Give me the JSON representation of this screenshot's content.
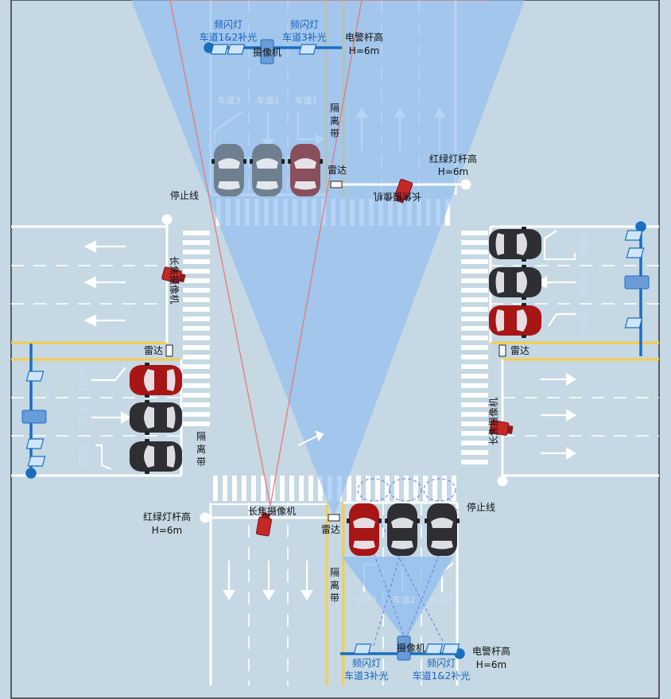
{
  "north": {
    "flash_lane12": [
      "频闪灯",
      "车道1&2补光"
    ],
    "flash_lane3": [
      "频闪灯",
      "车道3补光"
    ],
    "camera": "摄像机",
    "pole": [
      "电警杆高",
      "H=6m"
    ],
    "lanes": [
      "车道3",
      "车道2",
      "车道1"
    ],
    "median": [
      "隔",
      "离",
      "带"
    ],
    "radar": "雷达",
    "signal_pole": [
      "红绿灯杆高",
      "H=6m"
    ],
    "tele_camera": "长焦摄像机"
  },
  "west": {
    "stop_line": "停止线",
    "tele_camera": "长焦摄像机",
    "radar": "雷达",
    "lanes": [
      "车道1",
      "车道2",
      "车道3"
    ],
    "median": [
      "隔",
      "离",
      "带"
    ]
  },
  "east": {
    "lanes": [
      "车道3",
      "车道2",
      "车道1"
    ],
    "radar": "雷达",
    "tele_camera": "长焦摄像机"
  },
  "south": {
    "signal_pole": [
      "红绿灯杆高",
      "H=6m"
    ],
    "tele_camera": "长焦摄像机",
    "radar": "雷达",
    "stop_line": "停止线",
    "median": [
      "隔",
      "离",
      "带"
    ],
    "lanes": [
      "车道1",
      "车道2",
      "车道3"
    ],
    "camera": "摄像机",
    "pole": [
      "电警杆高",
      "H=6m"
    ],
    "flash_lane3": [
      "频闪灯",
      "车道3补光"
    ],
    "flash_lane12": [
      "频闪灯",
      "车道1&2补光"
    ]
  },
  "colors": {
    "background": "#c5d8e4",
    "marking": "#ffffff",
    "yellow": "#f6cc4a",
    "pole_blue": "#1a6fc1",
    "cone_fill": "#8fbdf0",
    "sight_line": "#e87a7a",
    "car_red": "#a81515",
    "car_black": "#2f2f33",
    "car_grey": "#6e7f90",
    "car_maroon": "#8a4f5c"
  },
  "icons": [
    "car-icon",
    "camera-icon",
    "telephoto-camera-icon",
    "strobe-light-icon",
    "radar-icon",
    "pole-icon",
    "arrow-icon"
  ]
}
